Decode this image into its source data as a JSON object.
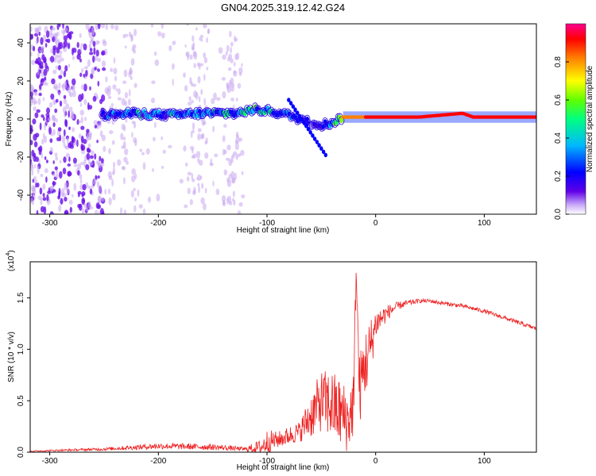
{
  "title": "GN04.2025.319.12.42.G24",
  "spectrogram": {
    "type": "heatmap",
    "xlabel": "Height of straight line (km)",
    "ylabel": "Frequency (Hz)",
    "xlim": [
      -318,
      148
    ],
    "ylim": [
      -50,
      50
    ],
    "xticks": [
      -300,
      -200,
      -100,
      0,
      100
    ],
    "yticks": [
      -40,
      -20,
      0,
      20,
      40
    ],
    "colorbar": {
      "label": "Normalized spectral amplitude",
      "range": [
        0,
        1
      ],
      "ticks": [
        0.0,
        0.2,
        0.4,
        0.6,
        0.8
      ],
      "tick_labels": [
        "0.0",
        "0.2",
        "0.4",
        "0.6",
        "0.8"
      ],
      "colors": [
        "#ffffff",
        "#b090f0",
        "#5000e0",
        "#0000ff",
        "#00c0ff",
        "#00ff60",
        "#80ff00",
        "#ffff00",
        "#ff8000",
        "#ff0000",
        "#ff0080"
      ]
    },
    "ridge": {
      "x": [
        -250,
        -220,
        -190,
        -160,
        -130,
        -110,
        -95,
        -80,
        -70,
        -60,
        -50,
        -40,
        -30,
        -20,
        -10,
        0,
        20,
        40,
        60,
        80,
        90,
        100,
        120,
        148
      ],
      "freq": [
        2,
        3,
        2,
        3,
        3,
        5,
        4,
        2,
        0,
        -2,
        -3,
        -2,
        1,
        1,
        1,
        1,
        1,
        1,
        2,
        3,
        1,
        1,
        1,
        1
      ],
      "amplitude": [
        0.35,
        0.4,
        0.4,
        0.4,
        0.45,
        0.5,
        0.45,
        0.4,
        0.35,
        0.3,
        0.35,
        0.4,
        0.8,
        0.85,
        0.9,
        0.95,
        0.95,
        0.95,
        0.95,
        0.95,
        0.95,
        0.95,
        0.95,
        0.95
      ]
    },
    "noise_region_x": [
      -318,
      -120
    ]
  },
  "snr": {
    "type": "line",
    "xlabel": "Height of straight line (km)",
    "ylabel": "SNR (10 * v/v)",
    "scale_label": "(x10",
    "scale_exp": "4",
    "xlim": [
      -318,
      148
    ],
    "ylim": [
      0,
      1.85
    ],
    "xticks": [
      -300,
      -200,
      -100,
      0,
      100
    ],
    "yticks": [
      0.0,
      0.5,
      1.0,
      1.5
    ],
    "ytick_labels": [
      "0.0",
      "0.5",
      "1.0",
      "1.5"
    ],
    "series_color": "#ee2222",
    "x": [
      -318,
      -250,
      -200,
      -150,
      -120,
      -105,
      -100,
      -90,
      -70,
      -60,
      -50,
      -40,
      -30,
      -25,
      -20,
      -18,
      -15,
      -10,
      -5,
      0,
      10,
      20,
      30,
      40,
      50,
      60,
      80,
      100,
      120,
      148
    ],
    "y": [
      0.01,
      0.03,
      0.06,
      0.05,
      0.03,
      0.05,
      0.1,
      0.12,
      0.2,
      0.35,
      0.5,
      0.45,
      0.35,
      0.3,
      0.5,
      1.85,
      0.6,
      0.85,
      1.0,
      1.25,
      1.35,
      1.42,
      1.45,
      1.47,
      1.47,
      1.45,
      1.42,
      1.37,
      1.3,
      1.2
    ],
    "spread": [
      0.005,
      0.015,
      0.03,
      0.03,
      0.02,
      0.08,
      0.12,
      0.08,
      0.1,
      0.22,
      0.3,
      0.35,
      0.35,
      0.3,
      0.35,
      0.2,
      0.35,
      0.35,
      0.3,
      0.15,
      0.08,
      0.04,
      0.03,
      0.02,
      0.02,
      0.02,
      0.02,
      0.02,
      0.02,
      0.02
    ]
  }
}
